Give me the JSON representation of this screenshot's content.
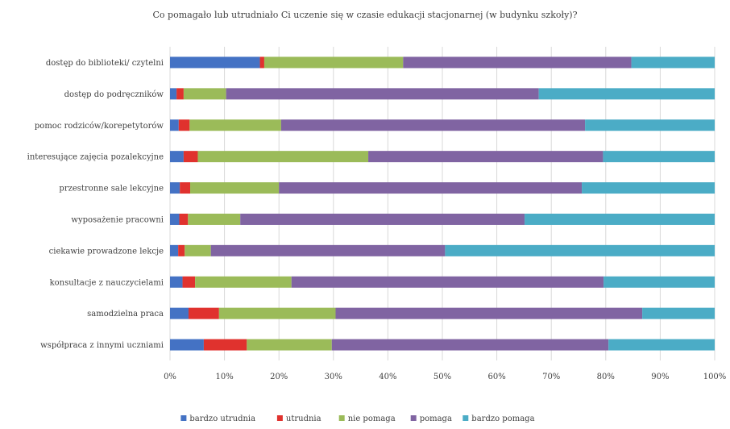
{
  "chart_data": {
    "type": "bar",
    "orientation": "horizontal",
    "stacked": true,
    "title": "Co pomagało lub utrudniało Ci uczenie się w czasie edukacji stacjonarnej (w budynku szkoły)?",
    "categories": [
      "dostęp do biblioteki/ czytelni",
      "dostęp do podręczników",
      "pomoc rodziców/korepetytorów",
      "interesujące zajęcia pozalekcyjne",
      "przestronne sale lekcyjne",
      "wyposażenie pracowni",
      "ciekawie prowadzone lekcje",
      "konsultacje z nauczycielami",
      "samodzielna praca",
      "współpraca z innymi uczniami"
    ],
    "series": [
      {
        "name": "bardzo utrudnia",
        "color": "#4472C4",
        "values": [
          16.5,
          1.2,
          1.6,
          2.5,
          1.8,
          1.7,
          1.5,
          2.3,
          3.4,
          6.2
        ]
      },
      {
        "name": "utrudnia",
        "color": "#E0322E",
        "values": [
          0.8,
          1.3,
          2.0,
          2.6,
          1.9,
          1.6,
          1.2,
          2.3,
          5.6,
          7.9
        ]
      },
      {
        "name": "nie pomaga",
        "color": "#9BBB59",
        "values": [
          25.5,
          7.8,
          16.8,
          31.3,
          16.3,
          9.6,
          4.8,
          17.7,
          21.4,
          15.6
        ]
      },
      {
        "name": "pomaga",
        "color": "#8064A2",
        "values": [
          41.9,
          57.4,
          55.8,
          43.1,
          55.6,
          52.2,
          43.0,
          57.3,
          56.3,
          50.8
        ]
      },
      {
        "name": "bardzo pomaga",
        "color": "#4BACC6",
        "values": [
          15.3,
          32.3,
          23.8,
          20.5,
          24.4,
          34.9,
          49.5,
          20.4,
          13.3,
          19.5
        ]
      }
    ],
    "xlim": [
      0,
      100
    ],
    "x_ticks": [
      "0%",
      "10%",
      "20%",
      "30%",
      "40%",
      "50%",
      "60%",
      "70%",
      "80%",
      "90%",
      "100%"
    ],
    "grid": "vertical",
    "legend_position": "bottom"
  }
}
